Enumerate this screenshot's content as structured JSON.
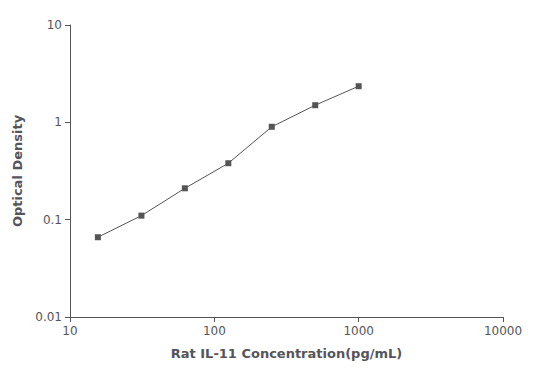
{
  "chart_data": {
    "type": "line",
    "x": [
      15.6,
      31.25,
      62.5,
      125,
      250,
      500,
      1000
    ],
    "values": [
      0.066,
      0.11,
      0.21,
      0.38,
      0.9,
      1.5,
      2.35
    ],
    "xlabel": "Rat IL-11 Concentration(pg/mL)",
    "ylabel": "Optical Density",
    "xlim": [
      10,
      10000
    ],
    "ylim": [
      0.01,
      10
    ],
    "xticks": [
      10,
      100,
      1000,
      10000
    ],
    "yticks": [
      0.01,
      0.1,
      1,
      10
    ],
    "log": true,
    "grid": false,
    "color": "#555555",
    "marker": "square"
  }
}
